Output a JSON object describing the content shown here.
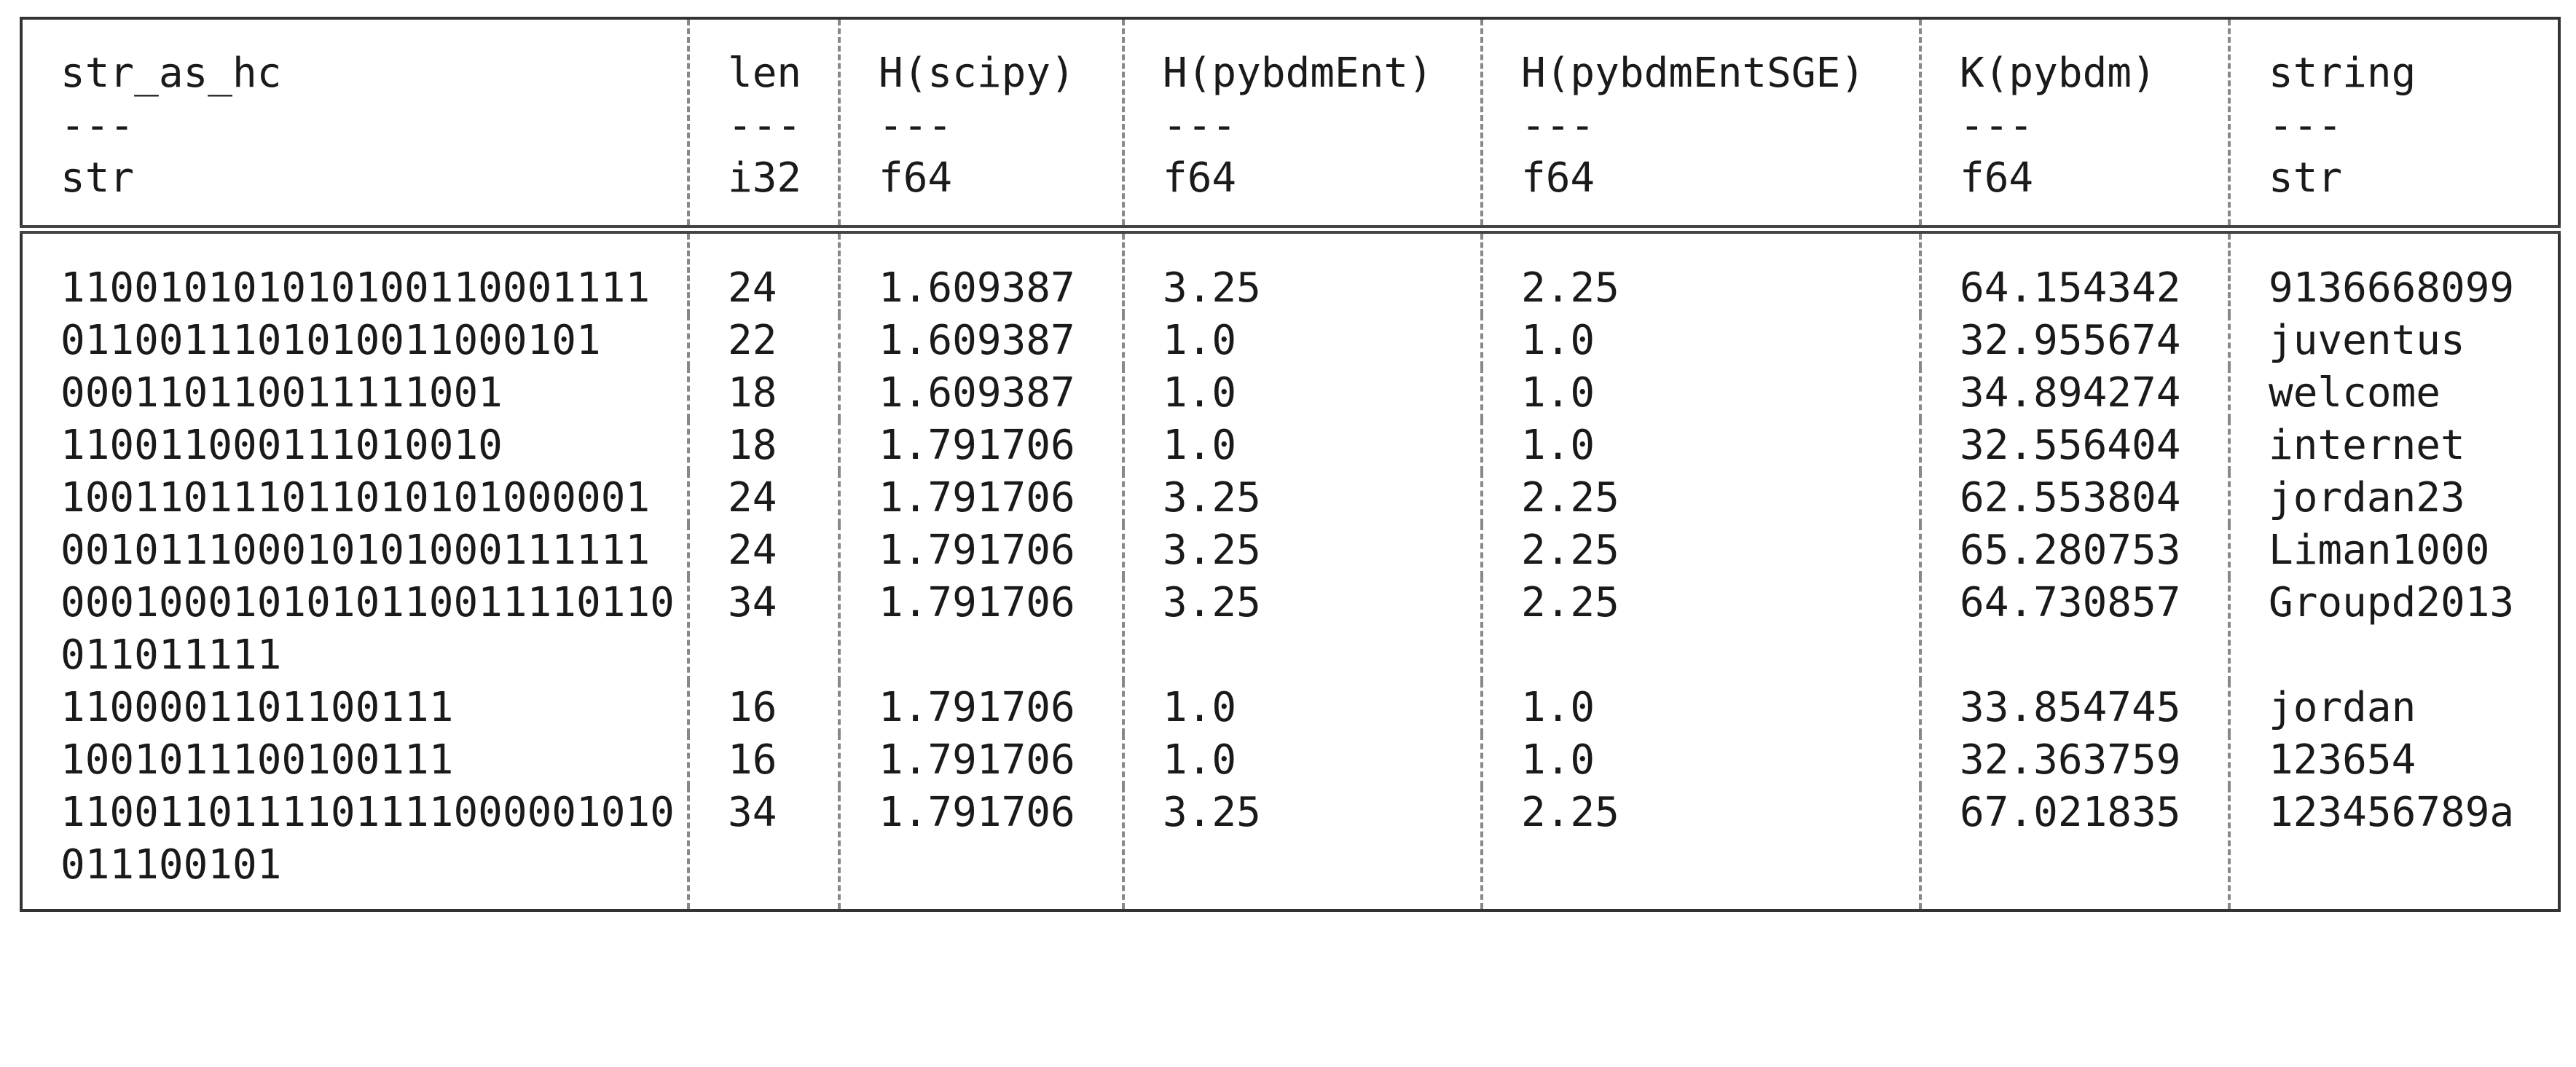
{
  "table": {
    "columns": [
      {
        "name": "str_as_hc",
        "separator": "---",
        "dtype": "str"
      },
      {
        "name": "len",
        "separator": "---",
        "dtype": "i32"
      },
      {
        "name": "H(scipy)",
        "separator": "---",
        "dtype": "f64"
      },
      {
        "name": "H(pybdmEnt)",
        "separator": "---",
        "dtype": "f64"
      },
      {
        "name": "H(pybdmEntSGE)",
        "separator": "---",
        "dtype": "f64"
      },
      {
        "name": "K(pybdm)",
        "separator": "---",
        "dtype": "f64"
      },
      {
        "name": "string",
        "separator": "---",
        "dtype": "str"
      }
    ],
    "rows": [
      [
        "110010101010100110001111",
        "24",
        "1.609387",
        "3.25",
        "2.25",
        "64.154342",
        "9136668099"
      ],
      [
        "0110011101010011000101",
        "22",
        "1.609387",
        "1.0",
        "1.0",
        "32.955674",
        "juventus"
      ],
      [
        "000110110011111001",
        "18",
        "1.609387",
        "1.0",
        "1.0",
        "34.894274",
        "welcome"
      ],
      [
        "110011000111010010",
        "18",
        "1.791706",
        "1.0",
        "1.0",
        "32.556404",
        "internet"
      ],
      [
        "100110111011010101000001",
        "24",
        "1.791706",
        "3.25",
        "2.25",
        "62.553804",
        "jordan23"
      ],
      [
        "001011100010101000111111",
        "24",
        "1.791706",
        "3.25",
        "2.25",
        "65.280753",
        "Liman1000"
      ],
      [
        "0001000101010110011110110011011111",
        "34",
        "1.791706",
        "3.25",
        "2.25",
        "64.730857",
        "Groupd2013"
      ],
      [
        "1100001101100111",
        "16",
        "1.791706",
        "1.0",
        "1.0",
        "33.854745",
        "jordan"
      ],
      [
        "1001011100100111",
        "16",
        "1.791706",
        "1.0",
        "1.0",
        "32.363759",
        "123654"
      ],
      [
        "1100110111101111000001010011100101",
        "34",
        "1.791706",
        "3.25",
        "2.25",
        "67.021835",
        "123456789a"
      ]
    ]
  }
}
